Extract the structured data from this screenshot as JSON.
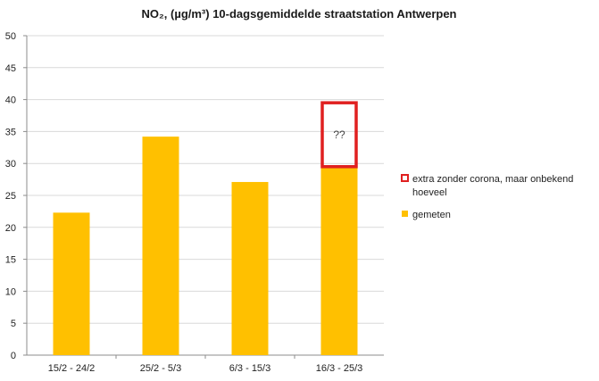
{
  "chart_data": {
    "type": "bar",
    "title": "NO₂, (µg/m³) 10-dagsgemiddelde straatstation Antwerpen",
    "categories": [
      "15/2 - 24/2",
      "25/2 - 5/3",
      "6/3 - 15/3",
      "16/3 - 25/3"
    ],
    "series": [
      {
        "name": "gemeten",
        "values": [
          22.3,
          34.2,
          27.1,
          29.5
        ]
      }
    ],
    "extra": {
      "name": "extra zonder corona, maar onbekend hoeveel",
      "category": "16/3 - 25/3",
      "from": 29.5,
      "to": 39.5,
      "label": "??"
    },
    "yticks": [
      0,
      5,
      10,
      15,
      20,
      25,
      30,
      35,
      40,
      45,
      50
    ],
    "ylim": [
      0,
      50
    ],
    "xlabel": "",
    "ylabel": "",
    "grid": true,
    "legend_position": "right",
    "colors": {
      "bar": "#FFC000",
      "extra_border": "#E02020",
      "grid": "#d9d9d9",
      "axis": "#8c8c8c"
    }
  },
  "legend": {
    "extra_label_line1": "extra zonder corona, maar onbekend",
    "extra_label_line2": "hoeveel",
    "measured_label": "gemeten"
  }
}
